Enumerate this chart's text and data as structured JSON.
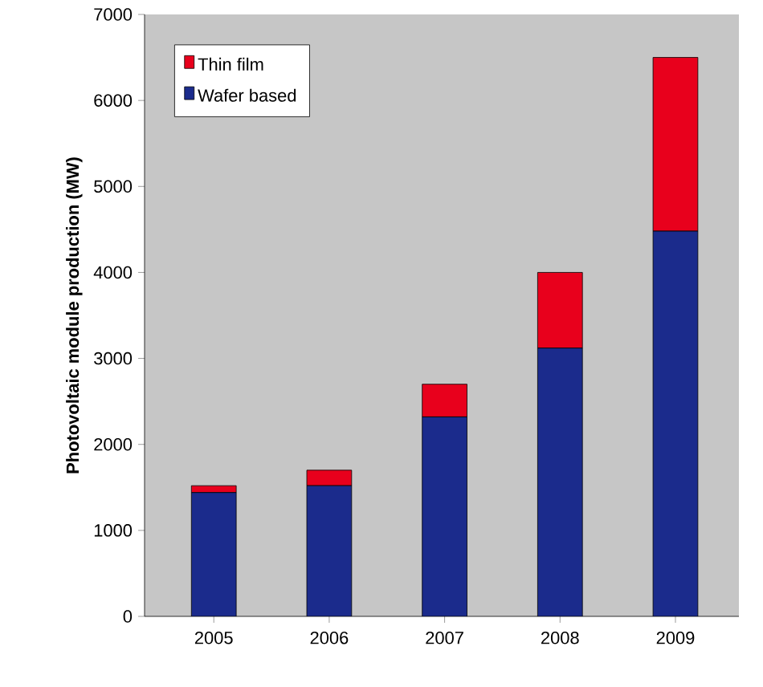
{
  "chart_data": {
    "type": "bar",
    "stacked": true,
    "ylabel": "Photovoltaic module production (MW)",
    "categories": [
      "2005",
      "2006",
      "2007",
      "2008",
      "2009"
    ],
    "series": [
      {
        "name": "Wafer based",
        "color": "#1b2b8c",
        "values": [
          1440,
          1520,
          2320,
          3120,
          4480
        ]
      },
      {
        "name": "Thin film",
        "color": "#e8001c",
        "values": [
          80,
          180,
          380,
          880,
          2020
        ]
      }
    ],
    "ylim": [
      0,
      7000
    ],
    "yticks": [
      0,
      1000,
      2000,
      3000,
      4000,
      5000,
      6000,
      7000
    ],
    "grid": false,
    "legend": "top left"
  }
}
